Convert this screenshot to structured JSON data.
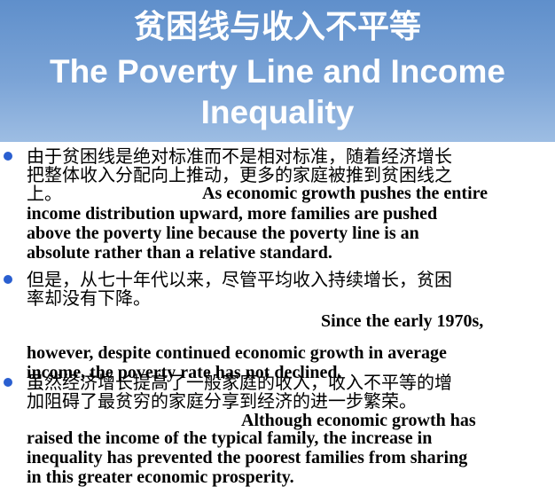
{
  "title": {
    "chinese": "贫困线与收入不平等",
    "english_line1": "The Poverty Line and Income",
    "english_line2": "Inequality"
  },
  "bullets": [
    {
      "cn_lines": [
        "由于贫困线是绝对标准而不是相对标准，随着经济增长",
        "把整体收入分配向上推动，更多的家庭被推到贫困线之",
        "上。"
      ],
      "en_lines": [
        "As economic growth pushes the entire",
        "income distribution upward, more families are pushed",
        "above the poverty line because the poverty line is an",
        "absolute rather than a relative standard."
      ]
    },
    {
      "cn_lines": [
        "但是，从七十年代以来，尽管平均收入持续增长，贫困",
        "率却没有下降。"
      ],
      "en_lines": [
        "Since the early 1970s,",
        "however, despite continued economic growth in average",
        "income, the poverty rate has not declined."
      ]
    },
    {
      "cn_lines": [
        "虽然经济增长提高了一般家庭的收入，收入不平等的增",
        "加阻碍了最贫穷的家庭分享到经济的进一步繁荣。"
      ],
      "en_lines": [
        "Although economic growth has",
        "raised the income of the typical family, the increase in",
        "inequality has prevented the poorest families from sharing",
        "in this greater economic prosperity."
      ]
    }
  ]
}
